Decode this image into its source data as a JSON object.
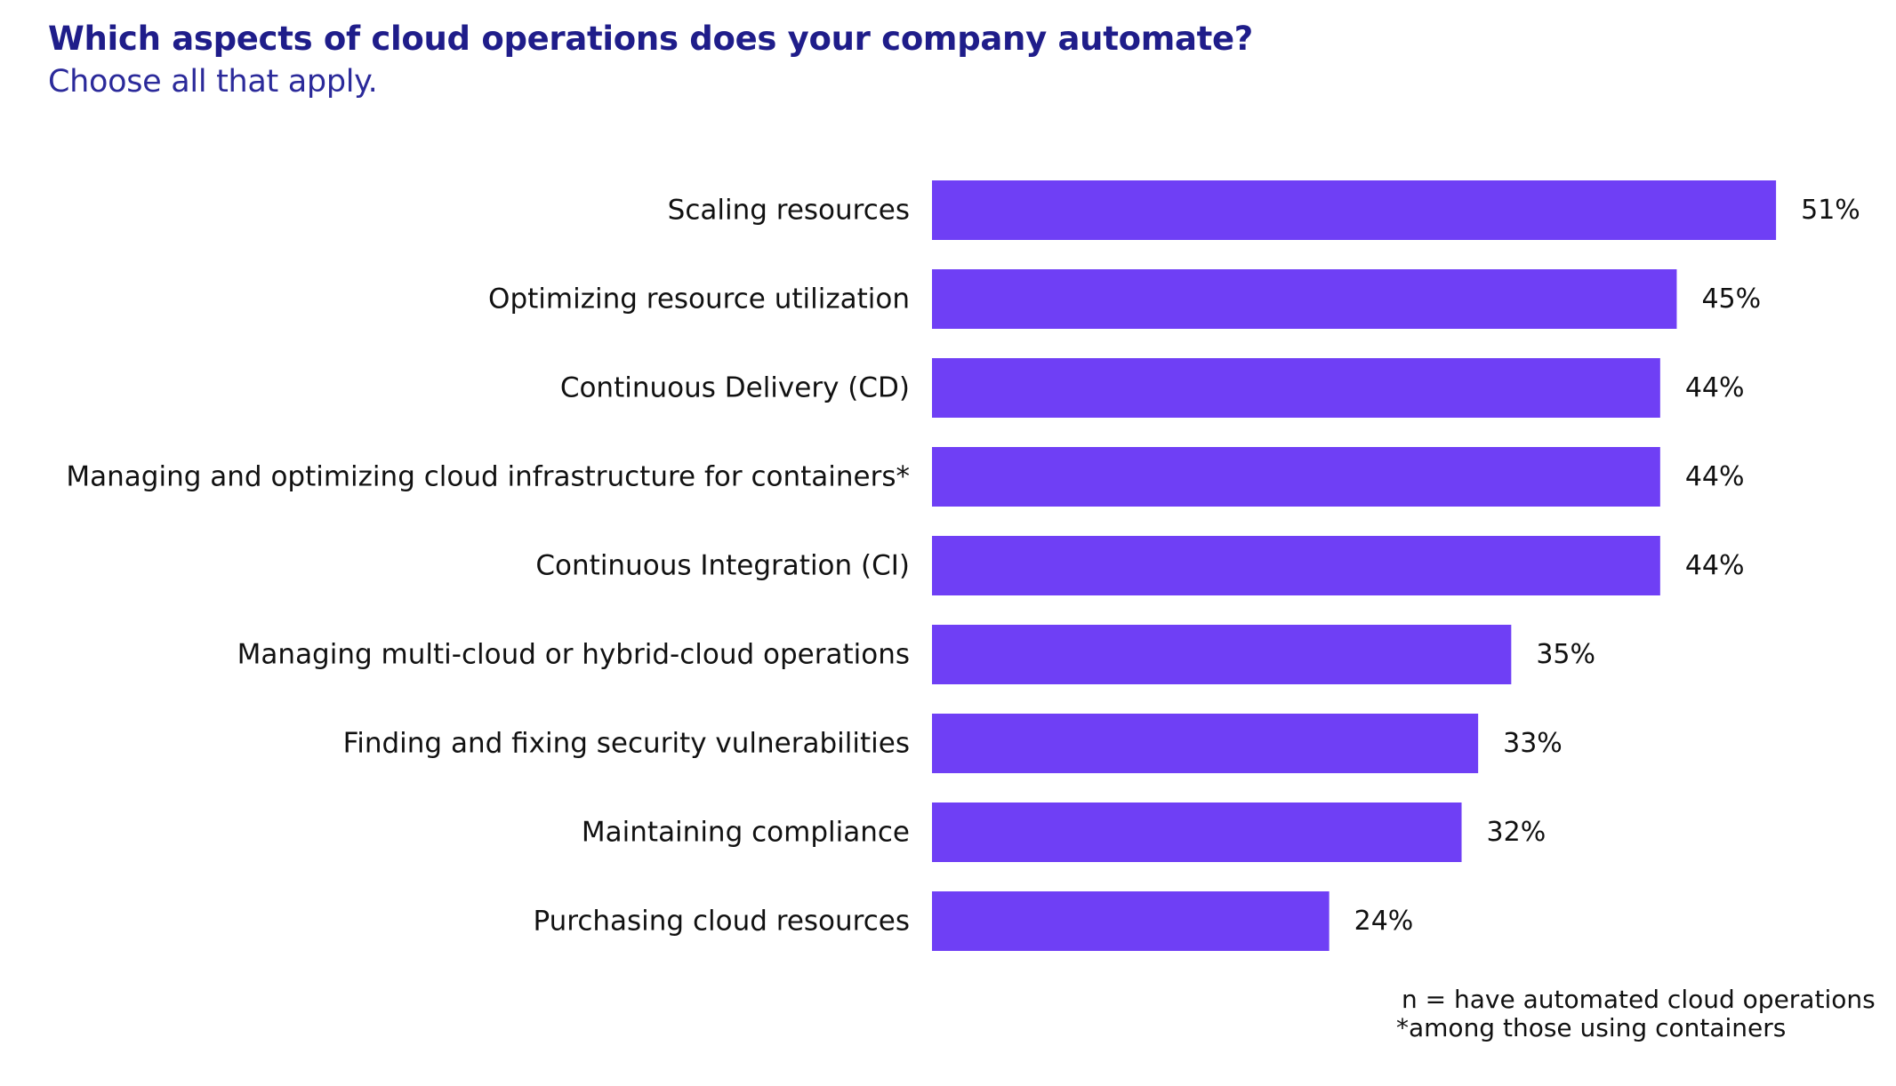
{
  "chart_data": {
    "type": "bar",
    "orientation": "horizontal",
    "title": "Which aspects of cloud operations does your company automate?",
    "subtitle": "Choose all that apply.",
    "categories": [
      "Scaling resources",
      "Optimizing resource utilization",
      "Continuous Delivery (CD)",
      "Managing and optimizing cloud infrastructure for containers*",
      "Continuous Integration (CI)",
      "Managing multi-cloud or hybrid-cloud operations",
      "Finding and fixing security vulnerabilities",
      "Maintaining compliance",
      "Purchasing cloud resources"
    ],
    "values": [
      51,
      45,
      44,
      44,
      44,
      35,
      33,
      32,
      24
    ],
    "value_labels": [
      "51%",
      "45%",
      "44%",
      "44%",
      "44%",
      "35%",
      "33%",
      "32%",
      "24%"
    ],
    "xlabel": "",
    "ylabel": "",
    "bar_color": "#6f3ff5",
    "grid": false,
    "legend": "none"
  },
  "footnotes": {
    "line1": "n = have automated cloud operations",
    "line2": "*among those using containers"
  }
}
